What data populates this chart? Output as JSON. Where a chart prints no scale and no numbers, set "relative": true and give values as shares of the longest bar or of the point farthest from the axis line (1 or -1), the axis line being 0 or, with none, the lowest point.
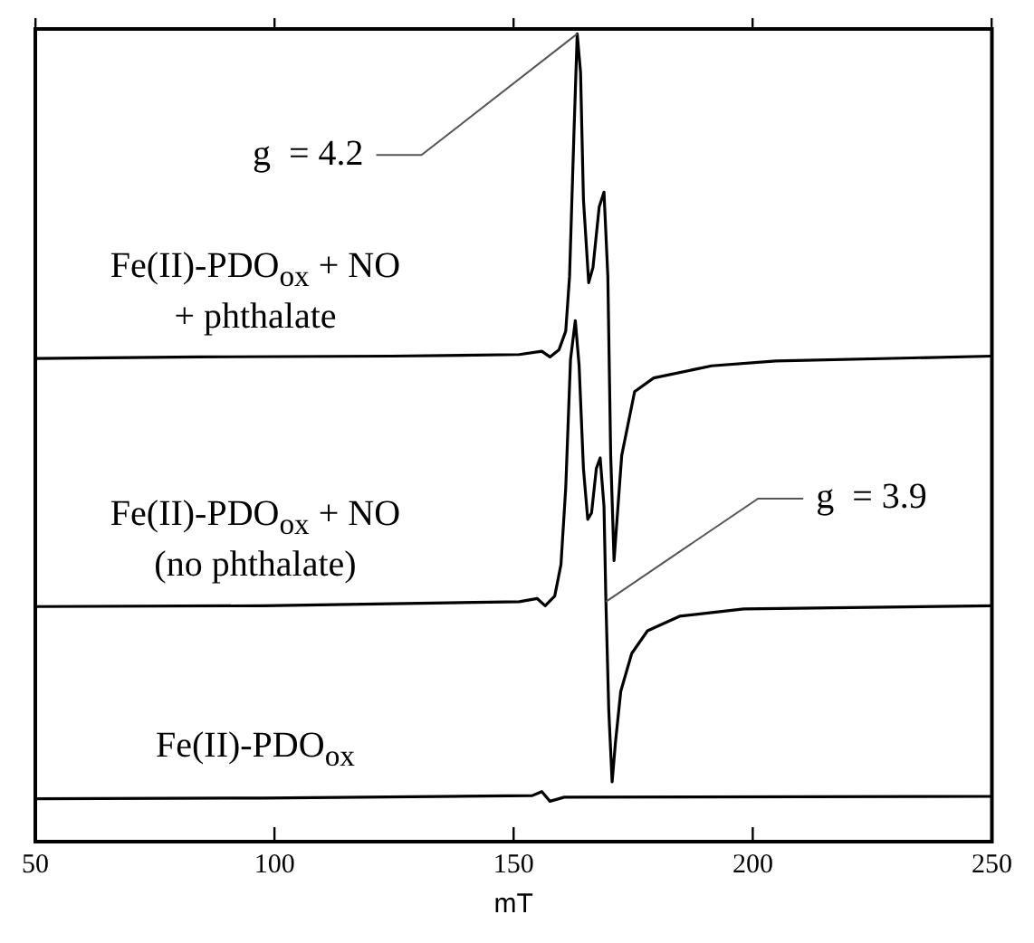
{
  "chart_data": {
    "type": "line",
    "xlabel": "mT",
    "relative": true,
    "xlim": [
      50,
      250
    ],
    "xticks": [
      50,
      100,
      150,
      200,
      250
    ],
    "legend": false,
    "grid": false,
    "marker": "none",
    "line_style": "solid",
    "annotations": [
      {
        "text": "g  = 4.2",
        "x": 163.3,
        "y": 1
      },
      {
        "text": "g  = 3.9",
        "x": 169.3,
        "y": 0.297
      }
    ],
    "series": [
      {
        "name": "Fe(II)-PDO$_{ox}$ + NO + phthalate",
        "color": "#000000",
        "x": [
          50,
          84.2,
          124.4,
          151.2,
          155.9,
          157.6,
          159.5,
          160.9,
          161.7,
          162.6,
          163.3,
          164.0,
          164.6,
          165.7,
          166.6,
          167.9,
          168.9,
          169.7,
          170.3,
          171.0,
          172.6,
          175.3,
          179.3,
          191.4,
          204.8,
          250
        ],
        "values": [
          0.598,
          0.6,
          0.601,
          0.603,
          0.607,
          0.6,
          0.609,
          0.632,
          0.7,
          0.874,
          1,
          0.952,
          0.795,
          0.692,
          0.711,
          0.786,
          0.804,
          0.7,
          0.478,
          0.348,
          0.478,
          0.557,
          0.574,
          0.589,
          0.595,
          0.601
        ]
      },
      {
        "name": "Fe(II)-PDO$_{ox}$ + NO (no phthalate)",
        "color": "#000000",
        "x": [
          50,
          97.6,
          151.2,
          154.9,
          156.6,
          158.6,
          159.9,
          160.9,
          161.9,
          162.9,
          163.7,
          164.6,
          165.5,
          166.3,
          167.3,
          168.1,
          168.9,
          169.3,
          169.9,
          170.6,
          171.3,
          172.4,
          174.7,
          178.0,
          184.7,
          198.1,
          250
        ],
        "values": [
          0.291,
          0.292,
          0.297,
          0.301,
          0.292,
          0.304,
          0.343,
          0.438,
          0.597,
          0.645,
          0.589,
          0.462,
          0.399,
          0.407,
          0.462,
          0.475,
          0.415,
          0.297,
          0.162,
          0.074,
          0.123,
          0.186,
          0.233,
          0.261,
          0.279,
          0.288,
          0.292
        ]
      },
      {
        "name": "Fe(II)-PDO$_{ox}$",
        "color": "#000000",
        "x": [
          50,
          97.6,
          153.9,
          155.9,
          157.6,
          160.6,
          250
        ],
        "values": [
          0.053,
          0.054,
          0.057,
          0.062,
          0.05,
          0.055,
          0.056
        ]
      }
    ]
  }
}
